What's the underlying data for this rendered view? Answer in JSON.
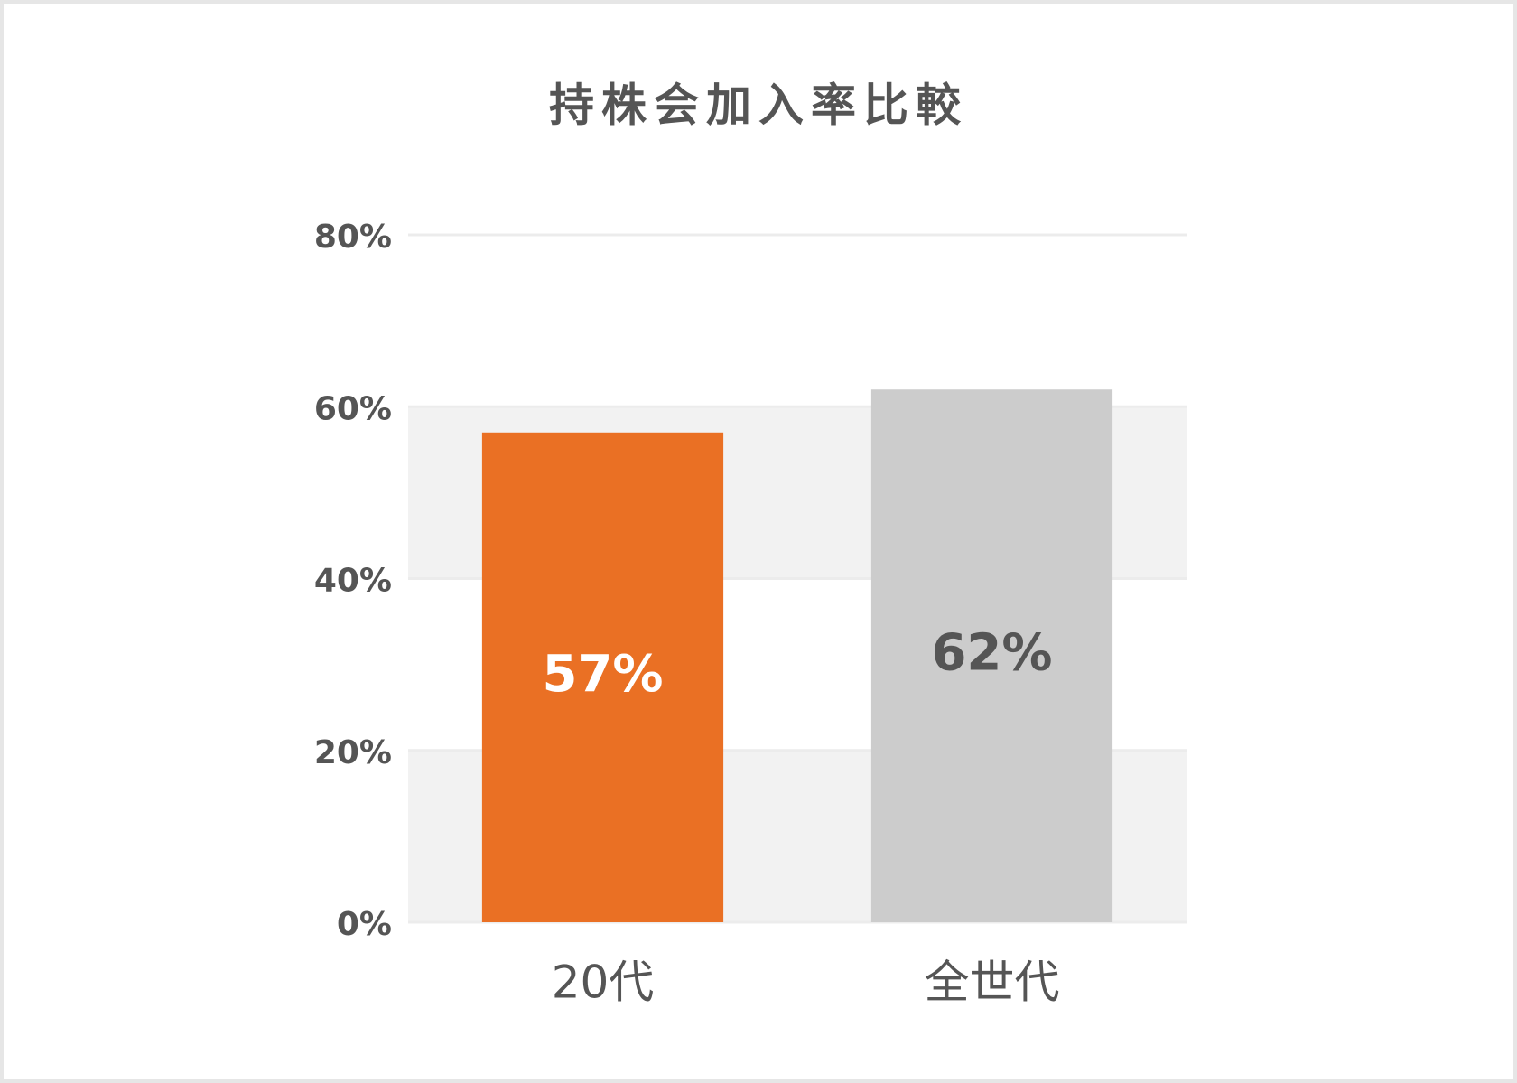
{
  "chart_data": {
    "type": "bar",
    "title": "持株会加入率比較",
    "categories": [
      "20代",
      "全世代"
    ],
    "values": [
      57,
      62
    ],
    "value_labels": [
      "57%",
      "62%"
    ],
    "colors": [
      "#ea7024",
      "#cccccc"
    ],
    "value_label_colors": [
      "#ffffff",
      "#555555"
    ],
    "ylim": [
      0,
      80
    ],
    "yticks": [
      {
        "value": 0,
        "label": "0%"
      },
      {
        "value": 20,
        "label": "20%"
      },
      {
        "value": 40,
        "label": "40%"
      },
      {
        "value": 60,
        "label": "60%"
      },
      {
        "value": 80,
        "label": "80%"
      }
    ],
    "grid": true
  }
}
